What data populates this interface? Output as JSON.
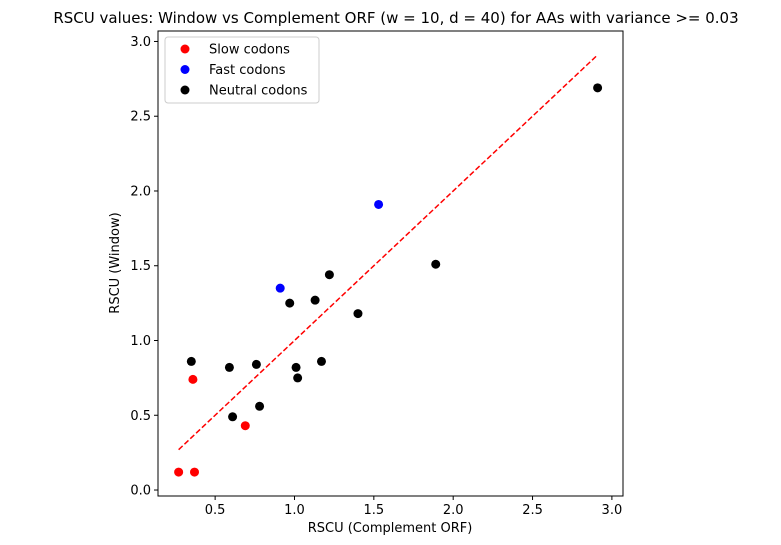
{
  "chart_data": {
    "type": "scatter",
    "title": "RSCU values: Window vs Complement ORF (w = 10, d = 40) for AAs with variance >= 0.03",
    "xlabel": "RSCU (Complement ORF)",
    "ylabel": "RSCU (Window)",
    "xlim": [
      0.14,
      3.07
    ],
    "ylim": [
      -0.04,
      3.07
    ],
    "xticks": [
      0.5,
      1.0,
      1.5,
      2.0,
      2.5,
      3.0
    ],
    "xtick_labels": [
      "0.5",
      "1.0",
      "1.5",
      "2.0",
      "2.5",
      "3.0"
    ],
    "yticks": [
      0.0,
      0.5,
      1.0,
      1.5,
      2.0,
      2.5,
      3.0
    ],
    "ytick_labels": [
      "0.0",
      "0.5",
      "1.0",
      "1.5",
      "2.0",
      "2.5",
      "3.0"
    ],
    "grid": false,
    "legend_position": "top-left",
    "series": [
      {
        "name": "Slow codons",
        "color": "#ff0000",
        "points": [
          [
            0.27,
            0.12
          ],
          [
            0.37,
            0.12
          ],
          [
            0.36,
            0.74
          ],
          [
            0.69,
            0.43
          ]
        ]
      },
      {
        "name": "Fast codons",
        "color": "#0000ff",
        "points": [
          [
            0.91,
            1.35
          ],
          [
            1.53,
            1.91
          ]
        ]
      },
      {
        "name": "Neutral codons",
        "color": "#000000",
        "points": [
          [
            0.35,
            0.86
          ],
          [
            0.59,
            0.82
          ],
          [
            0.61,
            0.49
          ],
          [
            0.76,
            0.84
          ],
          [
            0.78,
            0.56
          ],
          [
            0.97,
            1.25
          ],
          [
            1.01,
            0.82
          ],
          [
            1.02,
            0.75
          ],
          [
            1.13,
            1.27
          ],
          [
            1.17,
            0.86
          ],
          [
            1.22,
            1.44
          ],
          [
            1.4,
            1.18
          ],
          [
            1.89,
            1.51
          ],
          [
            2.91,
            2.69
          ]
        ]
      }
    ],
    "reference_line": {
      "style": "dashed",
      "color": "#ff0000",
      "points": [
        [
          0.27,
          0.27
        ],
        [
          2.91,
          2.91
        ]
      ]
    }
  }
}
